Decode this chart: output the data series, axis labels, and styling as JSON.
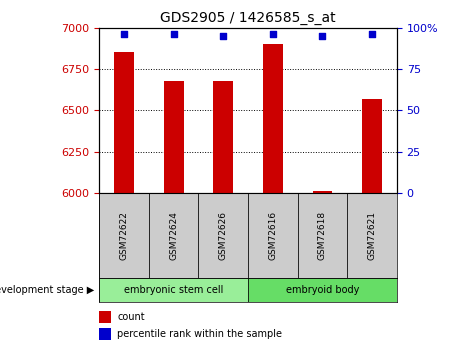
{
  "title": "GDS2905 / 1426585_s_at",
  "samples": [
    "GSM72622",
    "GSM72624",
    "GSM72626",
    "GSM72616",
    "GSM72618",
    "GSM72621"
  ],
  "bar_values": [
    6855,
    6680,
    6680,
    6900,
    6012,
    6570
  ],
  "percentile_values": [
    96,
    96,
    95,
    96,
    95,
    96
  ],
  "ylim_left": [
    6000,
    7000
  ],
  "ylim_right": [
    0,
    100
  ],
  "yticks_left": [
    6000,
    6250,
    6500,
    6750,
    7000
  ],
  "yticks_right": [
    0,
    25,
    50,
    75,
    100
  ],
  "bar_color": "#cc0000",
  "dot_color": "#0000cc",
  "grid_color": "#000000",
  "stage_groups": [
    {
      "label": "embryonic stem cell",
      "n_samples": 3,
      "color": "#99ee99"
    },
    {
      "label": "embryoid body",
      "n_samples": 3,
      "color": "#66dd66"
    }
  ],
  "stage_label": "development stage",
  "legend_items": [
    {
      "label": "count",
      "color": "#cc0000"
    },
    {
      "label": "percentile rank within the sample",
      "color": "#0000cc"
    }
  ],
  "tick_label_color_left": "#cc0000",
  "tick_label_color_right": "#0000cc",
  "background_xlabels": "#cccccc",
  "bar_width": 0.4
}
